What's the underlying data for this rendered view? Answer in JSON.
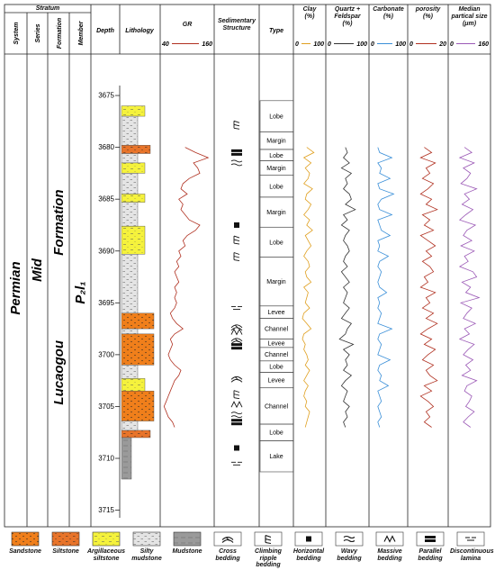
{
  "header": {
    "stratum": "Stratum",
    "system": "System",
    "series": "Series",
    "formation": "Formation",
    "member": "Member",
    "depth": "Depth",
    "lithology": "Lithology",
    "structure": "Sedimentary Structure",
    "type": "Type"
  },
  "stratum": {
    "system": "Permian",
    "series": "Mid",
    "formation": "Lucaogou Formation",
    "member": "P₂l₁"
  },
  "depth_axis": {
    "ylim": [
      3671,
      3716.6
    ],
    "yticks": [
      3675,
      3680,
      3685,
      3690,
      3695,
      3700,
      3705,
      3710,
      3715
    ]
  },
  "log_depths": [
    3680,
    3680.5,
    3681,
    3681.5,
    3682,
    3682.5,
    3683,
    3683.5,
    3684,
    3684.5,
    3685,
    3685.5,
    3686,
    3686.5,
    3687,
    3687.5,
    3688,
    3688.5,
    3689,
    3689.5,
    3690,
    3690.5,
    3691,
    3691.5,
    3692,
    3692.5,
    3693,
    3693.5,
    3694,
    3694.5,
    3695,
    3695.5,
    3696,
    3696.5,
    3697,
    3697.5,
    3698,
    3698.5,
    3699,
    3699.5,
    3700,
    3700.5,
    3701,
    3701.5,
    3702,
    3702.5,
    3703,
    3703.5,
    3704,
    3704.5,
    3705,
    3705.5,
    3706,
    3706.5,
    3707
  ],
  "logs": [
    {
      "title": "GR",
      "unit": null,
      "color": "#b03020",
      "xlim": [
        40,
        160
      ],
      "values": [
        95,
        120,
        150,
        115,
        125,
        130,
        105,
        90,
        85,
        100,
        80,
        90,
        85,
        95,
        105,
        130,
        120,
        100,
        90,
        95,
        80,
        85,
        75,
        80,
        70,
        75,
        80,
        70,
        75,
        70,
        75,
        70,
        60,
        65,
        75,
        90,
        70,
        60,
        65,
        60,
        55,
        60,
        70,
        85,
        80,
        70,
        65,
        60,
        55,
        50,
        45,
        50,
        55,
        65,
        70
      ]
    },
    {
      "title": "Clay",
      "unit": "(%)",
      "color": "#e0a020",
      "xlim": [
        0,
        100
      ],
      "values": [
        40,
        65,
        30,
        55,
        35,
        50,
        45,
        30,
        60,
        40,
        35,
        55,
        45,
        30,
        50,
        40,
        60,
        35,
        45,
        55,
        40,
        30,
        45,
        50,
        35,
        40,
        55,
        30,
        45,
        40,
        35,
        50,
        30,
        25,
        40,
        55,
        30,
        25,
        35,
        30,
        40,
        45,
        35,
        50,
        40,
        30,
        45,
        35,
        30,
        40,
        35,
        50,
        45,
        40,
        35
      ]
    },
    {
      "title": "Quartz + Feldspar",
      "unit": "(%)",
      "color": "#333333",
      "xlim": [
        0,
        100
      ],
      "values": [
        45,
        50,
        40,
        55,
        35,
        60,
        45,
        50,
        40,
        55,
        60,
        45,
        70,
        40,
        50,
        35,
        55,
        45,
        40,
        50,
        55,
        45,
        40,
        50,
        35,
        45,
        55,
        40,
        50,
        45,
        40,
        55,
        45,
        35,
        60,
        50,
        45,
        30,
        65,
        40,
        55,
        45,
        50,
        40,
        60,
        45,
        35,
        50,
        45,
        40,
        55,
        45,
        50,
        40,
        45
      ]
    },
    {
      "title": "Carbonate",
      "unit": "(%)",
      "color": "#3a8fd8",
      "xlim": [
        0,
        100
      ],
      "values": [
        20,
        25,
        60,
        20,
        30,
        25,
        55,
        20,
        25,
        65,
        30,
        20,
        25,
        60,
        20,
        25,
        30,
        55,
        20,
        25,
        20,
        50,
        25,
        20,
        30,
        25,
        20,
        25,
        45,
        20,
        25,
        20,
        30,
        25,
        20,
        60,
        25,
        20,
        30,
        25,
        20,
        55,
        25,
        20,
        30,
        25,
        50,
        20,
        25,
        30,
        20,
        25,
        30,
        20,
        25
      ]
    },
    {
      "title": "porosity",
      "unit": "(%)",
      "color": "#b03020",
      "xlim": [
        0,
        20
      ],
      "values": [
        8,
        12,
        6,
        14,
        9,
        11,
        7,
        13,
        10,
        6,
        12,
        9,
        15,
        7,
        11,
        8,
        13,
        6,
        10,
        14,
        9,
        12,
        7,
        11,
        13,
        8,
        10,
        6,
        14,
        9,
        11,
        7,
        13,
        9,
        15,
        10,
        6,
        12,
        8,
        14,
        10,
        7,
        13,
        9,
        11,
        15,
        8,
        12,
        6,
        10,
        13,
        9,
        11,
        8,
        12
      ]
    },
    {
      "title": "Median partical size",
      "unit": "(μm)",
      "color": "#9b59b6",
      "xlim": [
        0,
        160
      ],
      "values": [
        60,
        90,
        40,
        100,
        55,
        85,
        70,
        45,
        110,
        60,
        80,
        50,
        95,
        65,
        40,
        105,
        70,
        55,
        90,
        45,
        100,
        60,
        75,
        40,
        95,
        110,
        50,
        85,
        65,
        120,
        45,
        90,
        70,
        55,
        105,
        60,
        80,
        40,
        100,
        75,
        55,
        95,
        65,
        85,
        50,
        110,
        70,
        60,
        90,
        80,
        65,
        100,
        75,
        55,
        85
      ]
    }
  ],
  "facies": [
    {
      "label": "Lobe",
      "top": 3675.5,
      "base": 3678.5
    },
    {
      "label": "Margin",
      "top": 3678.5,
      "base": 3680.2
    },
    {
      "label": "Lobe",
      "top": 3680.2,
      "base": 3681.3
    },
    {
      "label": "Margin",
      "top": 3681.3,
      "base": 3682.7
    },
    {
      "label": "Lobe",
      "top": 3682.7,
      "base": 3684.8
    },
    {
      "label": "Margin",
      "top": 3684.8,
      "base": 3687.7
    },
    {
      "label": "Lobe",
      "top": 3687.7,
      "base": 3690.6
    },
    {
      "label": "Margin",
      "top": 3690.6,
      "base": 3695.3
    },
    {
      "label": "Levee",
      "top": 3695.3,
      "base": 3696.5
    },
    {
      "label": "Channel",
      "top": 3696.5,
      "base": 3698.5
    },
    {
      "label": "Levee",
      "top": 3698.5,
      "base": 3699.3
    },
    {
      "label": "Channel",
      "top": 3699.3,
      "base": 3700.6
    },
    {
      "label": "Lobe",
      "top": 3700.6,
      "base": 3701.7
    },
    {
      "label": "Levee",
      "top": 3701.7,
      "base": 3703.2
    },
    {
      "label": "Channel",
      "top": 3703.2,
      "base": 3706.7
    },
    {
      "label": "Lobe",
      "top": 3706.7,
      "base": 3708.3
    },
    {
      "label": "Lake",
      "top": 3708.3,
      "base": 3711.3
    }
  ],
  "lithology": [
    {
      "label": "Sandstone",
      "color": "#f07f1b",
      "beds": [
        [
          3696,
          3697.5
        ],
        [
          3698,
          3701
        ],
        [
          3703.5,
          3706.4
        ]
      ]
    },
    {
      "label": "Siltstone",
      "color": "#e8742a",
      "beds": [
        [
          3679.8,
          3680.6
        ],
        [
          3707.3,
          3708
        ]
      ]
    },
    {
      "label": "Argillaceous siltstone",
      "color": "#f5f23c",
      "beds": [
        [
          3676,
          3677
        ],
        [
          3681.5,
          3682.5
        ],
        [
          3684.5,
          3685.3
        ],
        [
          3687.6,
          3690.3
        ],
        [
          3702.3,
          3703.5
        ]
      ]
    },
    {
      "label": "Silty mudstone",
      "color": "#e4e4e4",
      "beds": [
        [
          3677,
          3679.8
        ],
        [
          3680.6,
          3681.5
        ],
        [
          3682.5,
          3684.5
        ],
        [
          3685.3,
          3687.6
        ],
        [
          3690.3,
          3696
        ],
        [
          3697.5,
          3698
        ],
        [
          3701,
          3702.3
        ],
        [
          3706.4,
          3707.3
        ]
      ]
    },
    {
      "label": "Mudstone",
      "color": "#9a9a9a",
      "beds": [
        [
          3708,
          3712
        ]
      ]
    }
  ],
  "structures": [
    {
      "label": "Cross bedding",
      "depths": [
        3697.3,
        3698.6,
        3702.3
      ]
    },
    {
      "label": "Climbing ripple bedding",
      "depths": [
        3677.8,
        3688.9,
        3690.5,
        3703.8
      ]
    },
    {
      "label": "Horizontal bedding",
      "depths": [
        3687.5,
        3709
      ]
    },
    {
      "label": "Wavy bedding",
      "depths": [
        3681.5,
        3705.8
      ]
    },
    {
      "label": "Massive bedding",
      "depths": [
        3697.8,
        3704.8
      ]
    },
    {
      "label": "Parallel bedding",
      "depths": [
        3680.5,
        3699.2,
        3706.5
      ]
    },
    {
      "label": "Discontinuous lamina",
      "depths": [
        3695.5,
        3710.5
      ]
    }
  ]
}
